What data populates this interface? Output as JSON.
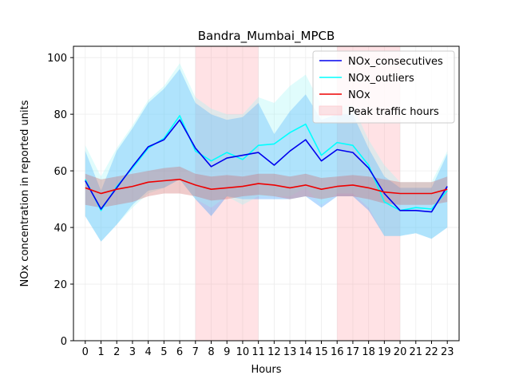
{
  "chart_data": {
    "type": "line",
    "title": "Bandra_Mumbai_MPCB",
    "xlabel": "Hours",
    "ylabel": "NOx concentration in reported units",
    "xlim": [
      -0.75,
      23.75
    ],
    "ylim": [
      0,
      104
    ],
    "x": [
      0,
      1,
      2,
      3,
      4,
      5,
      6,
      7,
      8,
      9,
      10,
      11,
      12,
      13,
      14,
      15,
      16,
      17,
      18,
      19,
      20,
      21,
      22,
      23
    ],
    "x_tick_labels": [
      "0",
      "1",
      "2",
      "3",
      "4",
      "5",
      "6",
      "7",
      "8",
      "9",
      "10",
      "11",
      "12",
      "13",
      "14",
      "15",
      "16",
      "17",
      "18",
      "19",
      "20",
      "21",
      "22",
      "23"
    ],
    "y_ticks": [
      0,
      20,
      40,
      60,
      80,
      100
    ],
    "y_tick_labels": [
      "0",
      "20",
      "40",
      "60",
      "80",
      "100"
    ],
    "grid": true,
    "legend_position": "top-right",
    "peak_traffic_spans": [
      [
        7,
        11
      ],
      [
        16,
        20
      ]
    ],
    "series": [
      {
        "name": "NOx_consecutives",
        "color": "#0000ee",
        "band_color": "#1e90ff",
        "values": [
          56.5,
          46.5,
          54,
          61.5,
          68.5,
          71,
          78,
          68,
          61.5,
          64.5,
          65.5,
          66.5,
          62,
          67,
          71,
          63.5,
          67.5,
          66.5,
          61,
          52,
          46,
          46,
          45.5,
          54.5
        ],
        "lower": [
          44,
          35,
          41,
          48,
          53,
          54,
          57,
          50,
          44,
          51,
          50,
          50,
          50,
          50,
          51,
          47,
          51,
          51,
          46,
          37,
          37,
          38,
          36,
          40
        ],
        "upper": [
          67,
          53,
          67,
          75,
          84,
          89,
          96,
          84,
          80,
          78,
          79,
          84,
          73,
          81,
          87,
          78,
          80,
          80,
          68,
          58,
          54,
          54,
          54,
          66
        ]
      },
      {
        "name": "NOx_outliers",
        "color": "#00ffff",
        "band_color": "#9ff7f7",
        "values": [
          57,
          46,
          54.5,
          61,
          68,
          71.5,
          79.5,
          67,
          63.5,
          66.5,
          64,
          69,
          69.5,
          73.5,
          76.5,
          65.5,
          70,
          69,
          62,
          49,
          46,
          47,
          46.5,
          53
        ],
        "lower": [
          44,
          35,
          41,
          47,
          52,
          54,
          57,
          50,
          47,
          51,
          48,
          51,
          51,
          51,
          54,
          48,
          52,
          52,
          47,
          37,
          37,
          38,
          36,
          40
        ],
        "upper": [
          69,
          58,
          68,
          76,
          85,
          90,
          98,
          86,
          82,
          80,
          80,
          86,
          84,
          90,
          94,
          83,
          83,
          83,
          71,
          62,
          56,
          56,
          56,
          67
        ]
      },
      {
        "name": "NOx",
        "color": "#ee0000",
        "band_color": "#cd5c5c",
        "values": [
          54,
          52,
          53.5,
          54.5,
          56,
          56.5,
          57,
          55,
          53.5,
          54,
          54.5,
          55.5,
          55,
          54,
          55,
          53.5,
          54.5,
          55,
          54,
          52.5,
          52,
          52,
          52,
          53.5
        ],
        "lower": [
          48,
          47,
          48,
          49,
          51,
          52,
          52,
          51,
          49.5,
          50,
          51,
          51.5,
          51,
          50,
          51,
          50,
          51,
          51,
          50,
          48.5,
          48,
          48,
          48,
          49
        ],
        "upper": [
          59,
          57,
          58,
          59,
          60,
          61,
          61.5,
          59,
          58,
          58.5,
          58,
          59,
          59,
          58,
          59,
          57.5,
          58,
          58.5,
          58,
          57,
          56,
          56,
          56,
          58
        ]
      }
    ],
    "legend": [
      "NOx_consecutives",
      "NOx_outliers",
      "NOx",
      "Peak traffic hours"
    ]
  }
}
